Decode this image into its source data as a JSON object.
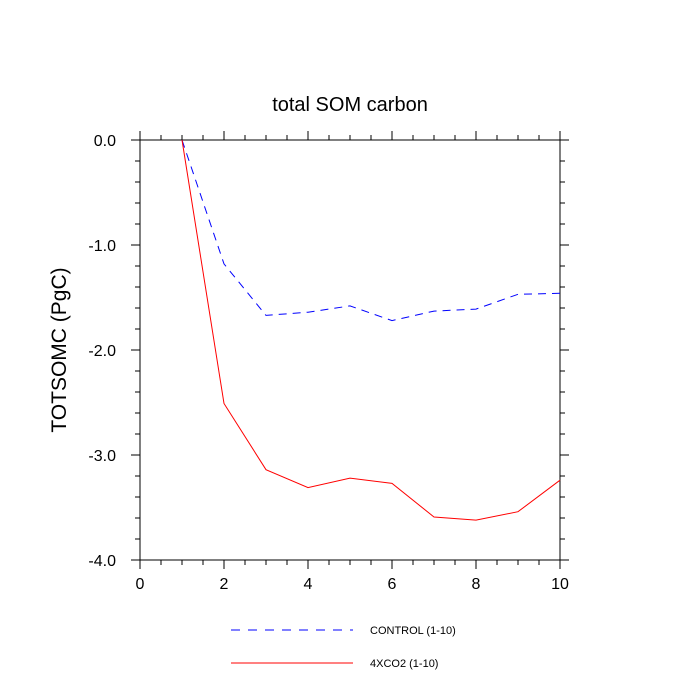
{
  "chart_data": {
    "type": "line",
    "title": "total SOM carbon",
    "xlabel": "",
    "ylabel": "TOTSOMC  (PgC)",
    "xlim": [
      0,
      10
    ],
    "ylim": [
      -4.0,
      0.0
    ],
    "x_ticks": [
      0,
      2,
      4,
      6,
      8,
      10
    ],
    "x_tick_labels": [
      "0",
      "2",
      "4",
      "6",
      "8",
      "10"
    ],
    "y_ticks": [
      0.0,
      -1.0,
      -2.0,
      -3.0,
      -4.0
    ],
    "y_tick_labels": [
      "0.0",
      "-1.0",
      "-2.0",
      "-3.0",
      "-4.0"
    ],
    "grid": false,
    "legend_position": "bottom",
    "series": [
      {
        "name": "CONTROL (1-10)",
        "color": "#0000ff",
        "style": "dashed",
        "x": [
          1,
          2,
          3,
          4,
          5,
          6,
          7,
          8,
          9,
          10
        ],
        "values": [
          0.0,
          -1.18,
          -1.67,
          -1.64,
          -1.58,
          -1.72,
          -1.63,
          -1.61,
          -1.47,
          -1.46
        ]
      },
      {
        "name": "4XCO2 (1-10)",
        "color": "#ff0000",
        "style": "solid",
        "x": [
          1,
          2,
          3,
          4,
          5,
          6,
          7,
          8,
          9,
          10
        ],
        "values": [
          0.0,
          -2.51,
          -3.14,
          -3.31,
          -3.22,
          -3.27,
          -3.59,
          -3.62,
          -3.54,
          -3.24
        ]
      }
    ]
  }
}
